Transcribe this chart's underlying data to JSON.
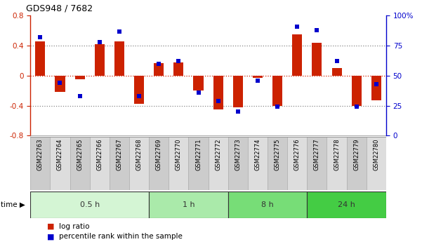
{
  "title": "GDS948 / 7682",
  "samples": [
    "GSM22763",
    "GSM22764",
    "GSM22765",
    "GSM22766",
    "GSM22767",
    "GSM22768",
    "GSM22769",
    "GSM22770",
    "GSM22771",
    "GSM22772",
    "GSM22773",
    "GSM22774",
    "GSM22775",
    "GSM22776",
    "GSM22777",
    "GSM22778",
    "GSM22779",
    "GSM22780"
  ],
  "log_ratio": [
    0.46,
    -0.22,
    -0.05,
    0.42,
    0.46,
    -0.38,
    0.17,
    0.18,
    -0.2,
    -0.45,
    -0.42,
    -0.03,
    -0.4,
    0.55,
    0.44,
    0.1,
    -0.4,
    -0.33
  ],
  "pct_rank": [
    82,
    44,
    33,
    78,
    87,
    33,
    60,
    62,
    36,
    29,
    20,
    46,
    24,
    91,
    88,
    62,
    24,
    43
  ],
  "groups": [
    {
      "label": "0.5 h",
      "start": 0,
      "end": 6,
      "color": "#d4f5d4"
    },
    {
      "label": "1 h",
      "start": 6,
      "end": 10,
      "color": "#aaeaaa"
    },
    {
      "label": "8 h",
      "start": 10,
      "end": 14,
      "color": "#77dd77"
    },
    {
      "label": "24 h",
      "start": 14,
      "end": 18,
      "color": "#44cc44"
    }
  ],
  "bar_color": "#cc2200",
  "dot_color": "#0000cc",
  "ylim_left": [
    -0.8,
    0.8
  ],
  "ylim_right": [
    0,
    100
  ],
  "yticks_left": [
    -0.8,
    -0.4,
    0.0,
    0.4,
    0.8
  ],
  "yticks_right": [
    0,
    25,
    50,
    75,
    100
  ],
  "ytick_labels_right": [
    "0",
    "25",
    "50",
    "75",
    "100%"
  ],
  "legend_labels": [
    "log ratio",
    "percentile rank within the sample"
  ],
  "dotted_lines": [
    -0.4,
    0.0,
    0.4
  ],
  "bar_width": 0.5,
  "dot_size": 18
}
